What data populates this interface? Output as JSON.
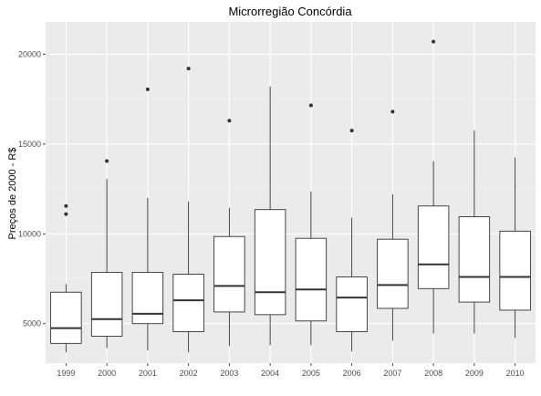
{
  "chart_data": {
    "type": "boxplot",
    "title": "Microrregião  Concórdia",
    "xlabel": "",
    "ylabel": "Preços de 2000 - R$",
    "ylim": [
      2800,
      21800
    ],
    "y_ticks": [
      5000,
      10000,
      15000,
      20000
    ],
    "grid": true,
    "background": "#ebebeb",
    "categories": [
      "1999",
      "2000",
      "2001",
      "2002",
      "2003",
      "2004",
      "2005",
      "2006",
      "2007",
      "2008",
      "2009",
      "2010"
    ],
    "boxes": [
      {
        "category": "1999",
        "whisker_low": 3400,
        "q1": 3900,
        "median": 4750,
        "q3": 6750,
        "whisker_high": 7200,
        "outliers": [
          11100,
          11550
        ]
      },
      {
        "category": "2000",
        "whisker_low": 3650,
        "q1": 4300,
        "median": 5250,
        "q3": 7850,
        "whisker_high": 13050,
        "outliers": [
          14050
        ]
      },
      {
        "category": "2001",
        "whisker_low": 3500,
        "q1": 5000,
        "median": 5550,
        "q3": 7850,
        "whisker_high": 12000,
        "outliers": [
          18050
        ]
      },
      {
        "category": "2002",
        "whisker_low": 3400,
        "q1": 4550,
        "median": 6300,
        "q3": 7750,
        "whisker_high": 11800,
        "outliers": [
          19200
        ]
      },
      {
        "category": "2003",
        "whisker_low": 3750,
        "q1": 5650,
        "median": 7100,
        "q3": 9850,
        "whisker_high": 11450,
        "outliers": [
          16300
        ]
      },
      {
        "category": "2004",
        "whisker_low": 3800,
        "q1": 5500,
        "median": 6750,
        "q3": 11350,
        "whisker_high": 18200,
        "outliers": []
      },
      {
        "category": "2005",
        "whisker_low": 3800,
        "q1": 5150,
        "median": 6900,
        "q3": 9750,
        "whisker_high": 12350,
        "outliers": [
          17150
        ]
      },
      {
        "category": "2006",
        "whisker_low": 3450,
        "q1": 4550,
        "median": 6450,
        "q3": 7600,
        "whisker_high": 10900,
        "outliers": [
          15750
        ]
      },
      {
        "category": "2007",
        "whisker_low": 4050,
        "q1": 5850,
        "median": 7150,
        "q3": 9700,
        "whisker_high": 12200,
        "outliers": [
          16800
        ]
      },
      {
        "category": "2008",
        "whisker_low": 4450,
        "q1": 6950,
        "median": 8300,
        "q3": 11550,
        "whisker_high": 14050,
        "outliers": [
          20700
        ]
      },
      {
        "category": "2009",
        "whisker_low": 4450,
        "q1": 6200,
        "median": 7600,
        "q3": 10950,
        "whisker_high": 15750,
        "outliers": []
      },
      {
        "category": "2010",
        "whisker_low": 4200,
        "q1": 5750,
        "median": 7600,
        "q3": 10150,
        "whisker_high": 14250,
        "outliers": []
      }
    ]
  }
}
